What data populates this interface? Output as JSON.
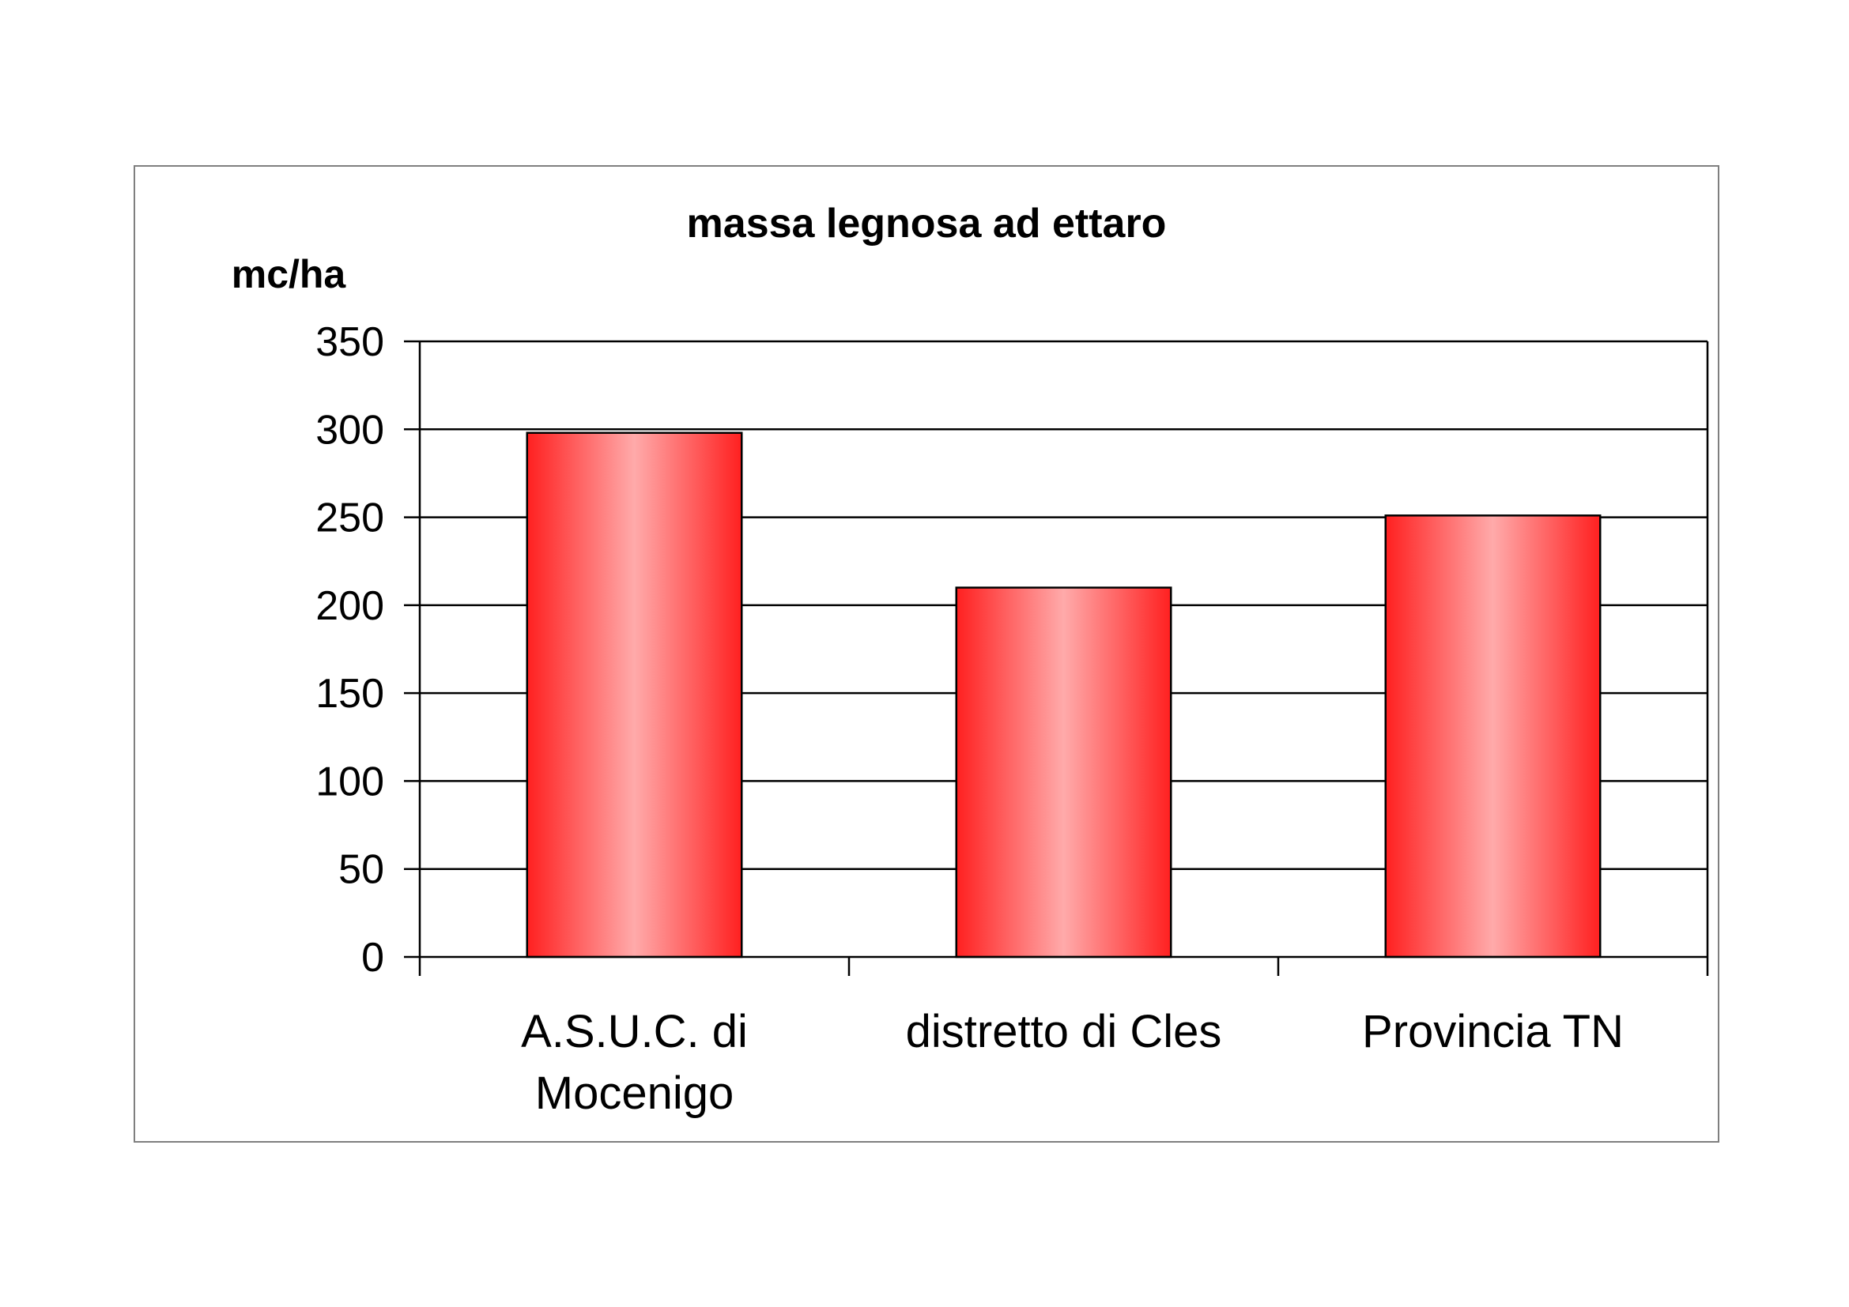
{
  "chart_data": {
    "type": "bar",
    "title": "massa legnosa ad ettaro",
    "ylabel": "mc/ha",
    "xlabel": "",
    "categories": [
      [
        "A.S.U.C. di",
        "Mocenigo"
      ],
      [
        "distretto di Cles"
      ],
      [
        "Provincia TN"
      ]
    ],
    "values": [
      298,
      210,
      251
    ],
    "ylim": [
      0,
      350
    ],
    "yticks": [
      0,
      50,
      100,
      150,
      200,
      250,
      300,
      350
    ],
    "grid": true,
    "legend": "none",
    "bar_color": "#ff2020",
    "bar_highlight": "#ffaaaa"
  }
}
